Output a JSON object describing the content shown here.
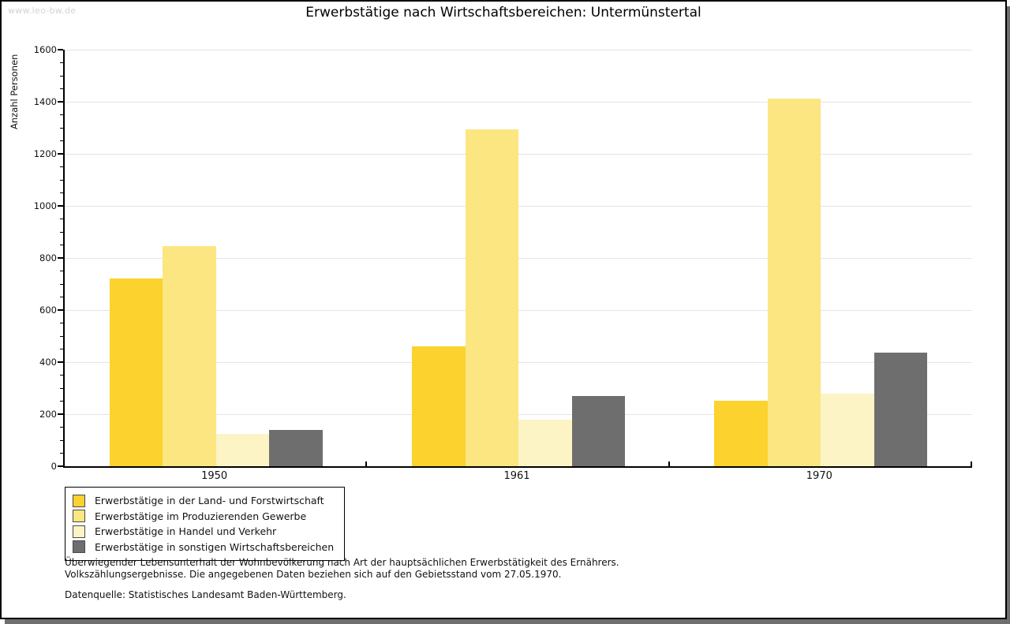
{
  "watermark": "www.leo-bw.de",
  "title": "Erwerbstätige nach Wirtschaftsbereichen: Untermünstertal",
  "chart_data": {
    "type": "bar",
    "title": "Erwerbstätige nach Wirtschaftsbereichen: Untermünstertal",
    "xlabel": "",
    "ylabel": "Anzahl Personen",
    "categories": [
      "1950",
      "1961",
      "1970"
    ],
    "series": [
      {
        "name": "Erwerbstätige in der Land- und Forstwirtschaft",
        "color": "#fcd22f",
        "values": [
          720,
          462,
          253
        ]
      },
      {
        "name": "Erwerbstätige im Produzierenden Gewerbe",
        "color": "#fbe681",
        "values": [
          845,
          1293,
          1411
        ]
      },
      {
        "name": "Erwerbstätige in Handel und Verkehr",
        "color": "#fcf4c5",
        "values": [
          124,
          178,
          279
        ]
      },
      {
        "name": "Erwerbstätige in sonstigen Wirtschaftsbereichen",
        "color": "#6e6e6e",
        "values": [
          140,
          271,
          437
        ]
      }
    ],
    "ylim": [
      0,
      1600
    ],
    "ytick_step": 200,
    "minor_tick_step": 50,
    "grid": true,
    "legend_position": "bottom-left",
    "colors": {
      "axis": "#000000",
      "gridline": "#e4e4e4",
      "text": "#111111",
      "watermark": "#d3d3d3",
      "shadow": "#6f6f6f"
    }
  },
  "footnotes": {
    "line1": "Überwiegender Lebensunterhalt der Wohnbevölkerung nach Art der hauptsächlichen Erwerbstätigkeit des Ernährers.",
    "line2": "Volkszählungsergebnisse. Die angegebenen Daten beziehen sich auf den Gebietsstand vom 27.05.1970.",
    "source": "Datenquelle: Statistisches Landesamt Baden-Württemberg."
  }
}
